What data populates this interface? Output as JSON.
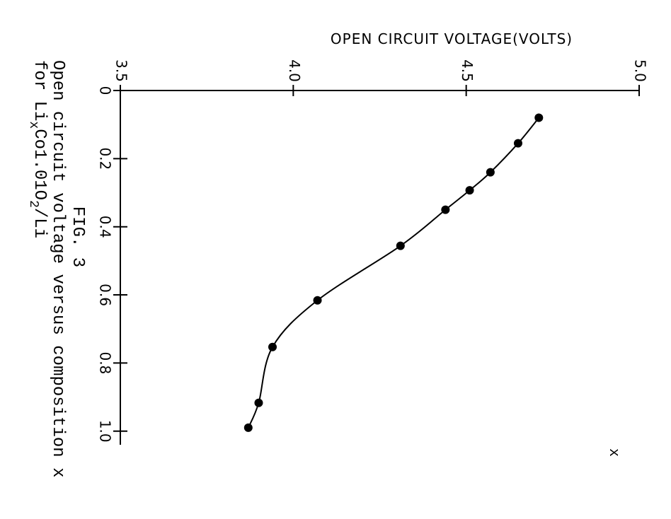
{
  "chart_data": {
    "type": "line",
    "ylabel": "OPEN CIRCUIT VOLTAGE(VOLTS)",
    "xlabel": "x",
    "x": [
      0.08,
      0.155,
      0.24,
      0.293,
      0.35,
      0.456,
      0.616,
      0.753,
      0.917,
      0.99
    ],
    "series": [
      {
        "color": "#000000",
        "values": [
          4.71,
          4.65,
          4.57,
          4.51,
          4.44,
          4.31,
          4.07,
          3.94,
          3.9,
          3.87
        ]
      }
    ],
    "xlim": [
      0,
      1.04
    ],
    "xticks": [
      0,
      0.2,
      0.4,
      0.6,
      0.8,
      {
        "value": 1,
        "label": "1.0"
      }
    ],
    "ylim": [
      3.5,
      5.0
    ],
    "yticks": [
      3.5,
      {
        "value": 4,
        "label": "4.0"
      },
      4.5,
      {
        "value": 5,
        "label": "5.0"
      }
    ],
    "figure_label": "FIG. 3",
    "caption_line1": "Open circuit voltage versus composition x",
    "caption_line2": [
      "for Li",
      "x",
      "Co1.01O",
      "2",
      "/Li"
    ]
  }
}
